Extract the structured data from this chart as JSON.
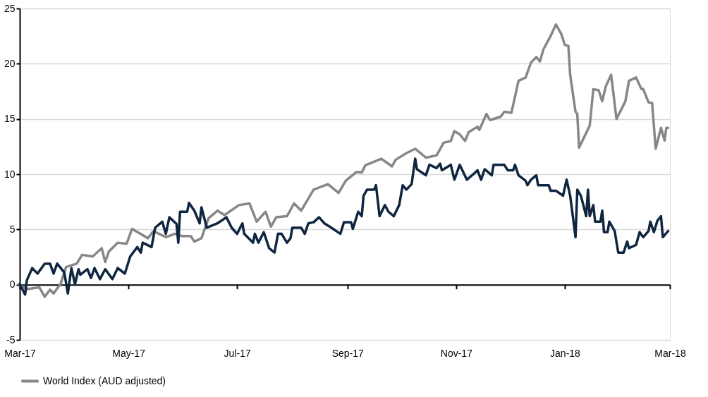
{
  "chart_data": {
    "type": "line",
    "xlim": [
      "2017-03-01",
      "2018-03-01"
    ],
    "xticks": [
      {
        "value": "2017-03-01",
        "label": "Mar-17"
      },
      {
        "value": "2017-05-01",
        "label": "May-17"
      },
      {
        "value": "2017-07-01",
        "label": "Jul-17"
      },
      {
        "value": "2017-09-01",
        "label": "Sep-17"
      },
      {
        "value": "2017-11-01",
        "label": "Nov-17"
      },
      {
        "value": "2018-01-01",
        "label": "Jan-18"
      },
      {
        "value": "2018-03-01",
        "label": "Mar-18"
      }
    ],
    "ylim": [
      -5,
      25
    ],
    "yticks": [
      -5,
      0,
      5,
      10,
      15,
      20,
      25
    ],
    "grid": "y",
    "legend": "bottom",
    "line_style": "solid",
    "marker": "none",
    "series": [
      {
        "name": "World Index (AUD adjusted)",
        "color": "#878787",
        "x": [
          "2017-03-01",
          "2017-03-05",
          "2017-03-12",
          "2017-03-15",
          "2017-03-18",
          "2017-03-20",
          "2017-03-24",
          "2017-03-27",
          "2017-04-02",
          "2017-04-05",
          "2017-04-11",
          "2017-04-16",
          "2017-04-18",
          "2017-04-20",
          "2017-04-25",
          "2017-04-30",
          "2017-05-03",
          "2017-05-12",
          "2017-05-15",
          "2017-05-22",
          "2017-05-27",
          "2017-05-31",
          "2017-06-05",
          "2017-06-07",
          "2017-06-11",
          "2017-06-15",
          "2017-06-20",
          "2017-06-24",
          "2017-07-02",
          "2017-07-08",
          "2017-07-12",
          "2017-07-17",
          "2017-07-20",
          "2017-07-23",
          "2017-07-29",
          "2017-08-02",
          "2017-08-06",
          "2017-08-13",
          "2017-08-21",
          "2017-08-27",
          "2017-08-31",
          "2017-09-06",
          "2017-09-09",
          "2017-09-11",
          "2017-09-20",
          "2017-09-26",
          "2017-09-28",
          "2017-10-04",
          "2017-10-09",
          "2017-10-15",
          "2017-10-21",
          "2017-10-25",
          "2017-10-29",
          "2017-10-31",
          "2017-11-03",
          "2017-11-06",
          "2017-11-08",
          "2017-11-13",
          "2017-11-14",
          "2017-11-18",
          "2017-11-20",
          "2017-11-26",
          "2017-11-28",
          "2017-12-02",
          "2017-12-06",
          "2017-12-10",
          "2017-12-13",
          "2017-12-16",
          "2017-12-18",
          "2017-12-20",
          "2017-12-24",
          "2017-12-27",
          "2017-12-30",
          "2018-01-01",
          "2018-01-03",
          "2018-01-04",
          "2018-01-07",
          "2018-01-08",
          "2018-01-09",
          "2018-01-15",
          "2018-01-17",
          "2018-01-20",
          "2018-01-22",
          "2018-01-24",
          "2018-01-27",
          "2018-01-30",
          "2018-02-04",
          "2018-02-06",
          "2018-02-10",
          "2018-02-13",
          "2018-02-14",
          "2018-02-17",
          "2018-02-19",
          "2018-02-21",
          "2018-02-24",
          "2018-02-26",
          "2018-02-27",
          "2018-02-28"
        ],
        "values": [
          0,
          -0.4,
          -0.25,
          -1.1,
          -0.45,
          -0.8,
          0.1,
          1.6,
          1.9,
          2.7,
          2.55,
          3.3,
          2.05,
          3.0,
          3.8,
          3.7,
          5.05,
          4.2,
          4.85,
          4.3,
          4.6,
          4.4,
          4.4,
          3.9,
          4.2,
          6.0,
          6.7,
          6.3,
          7.2,
          7.35,
          5.7,
          6.6,
          5.25,
          6.1,
          6.2,
          7.35,
          6.7,
          8.6,
          9.1,
          8.3,
          9.4,
          10.2,
          10.15,
          10.8,
          11.4,
          10.7,
          11.3,
          11.9,
          12.3,
          11.5,
          11.7,
          12.85,
          13.0,
          13.9,
          13.6,
          13.0,
          13.8,
          14.3,
          14.0,
          15.45,
          14.9,
          15.2,
          15.65,
          15.55,
          18.45,
          18.75,
          20.1,
          20.6,
          20.2,
          21.3,
          22.5,
          23.55,
          22.7,
          21.7,
          21.6,
          19.0,
          15.65,
          15.45,
          12.4,
          14.4,
          17.7,
          17.6,
          16.6,
          17.95,
          19.0,
          15.0,
          16.6,
          18.45,
          18.75,
          17.7,
          17.7,
          16.5,
          16.45,
          12.3,
          14.2,
          13.05,
          14.2,
          14.2
        ]
      },
      {
        "color": "#0f2540",
        "x": [
          "2017-03-01",
          "2017-03-04",
          "2017-03-05",
          "2017-03-08",
          "2017-03-11",
          "2017-03-15",
          "2017-03-18",
          "2017-03-20",
          "2017-03-22",
          "2017-03-26",
          "2017-03-28",
          "2017-03-30",
          "2017-04-01",
          "2017-04-03",
          "2017-04-04",
          "2017-04-08",
          "2017-04-10",
          "2017-04-12",
          "2017-04-15",
          "2017-04-18",
          "2017-04-22",
          "2017-04-25",
          "2017-04-29",
          "2017-05-02",
          "2017-05-06",
          "2017-05-08",
          "2017-05-09",
          "2017-05-14",
          "2017-05-16",
          "2017-05-20",
          "2017-05-22",
          "2017-05-24",
          "2017-05-28",
          "2017-05-29",
          "2017-05-30",
          "2017-06-03",
          "2017-06-04",
          "2017-06-07",
          "2017-06-10",
          "2017-06-11",
          "2017-06-14",
          "2017-06-20",
          "2017-06-25",
          "2017-06-28",
          "2017-07-01",
          "2017-07-04",
          "2017-07-05",
          "2017-07-10",
          "2017-07-11",
          "2017-07-13",
          "2017-07-16",
          "2017-07-19",
          "2017-07-22",
          "2017-07-24",
          "2017-07-26",
          "2017-07-29",
          "2017-07-31",
          "2017-08-01",
          "2017-08-06",
          "2017-08-08",
          "2017-08-10",
          "2017-08-13",
          "2017-08-16",
          "2017-08-19",
          "2017-08-23",
          "2017-08-28",
          "2017-08-30",
          "2017-09-03",
          "2017-09-04",
          "2017-09-07",
          "2017-09-09",
          "2017-09-10",
          "2017-09-12",
          "2017-09-16",
          "2017-09-17",
          "2017-09-19",
          "2017-09-22",
          "2017-09-24",
          "2017-09-27",
          "2017-09-30",
          "2017-10-02",
          "2017-10-04",
          "2017-10-07",
          "2017-10-09",
          "2017-10-10",
          "2017-10-15",
          "2017-10-17",
          "2017-10-21",
          "2017-10-23",
          "2017-10-24",
          "2017-10-29",
          "2017-10-31",
          "2017-11-03",
          "2017-11-07",
          "2017-11-11",
          "2017-11-13",
          "2017-11-15",
          "2017-11-17",
          "2017-11-21",
          "2017-11-22",
          "2017-11-28",
          "2017-11-30",
          "2017-12-03",
          "2017-12-04",
          "2017-12-06",
          "2017-12-10",
          "2017-12-11",
          "2017-12-13",
          "2017-12-16",
          "2017-12-17",
          "2017-12-23",
          "2017-12-24",
          "2017-12-27",
          "2017-12-31",
          "2018-01-02",
          "2018-01-04",
          "2018-01-07",
          "2018-01-08",
          "2018-01-10",
          "2018-01-13",
          "2018-01-14",
          "2018-01-15",
          "2018-01-17",
          "2018-01-18",
          "2018-01-21",
          "2018-01-22",
          "2018-01-23",
          "2018-01-25",
          "2018-01-26",
          "2018-01-29",
          "2018-01-31",
          "2018-02-03",
          "2018-02-05",
          "2018-02-06",
          "2018-02-10",
          "2018-02-12",
          "2018-02-14",
          "2018-02-17",
          "2018-02-18",
          "2018-02-20",
          "2018-02-22",
          "2018-02-24",
          "2018-02-25",
          "2018-02-28"
        ],
        "values": [
          0.05,
          -0.9,
          0.4,
          1.5,
          1.0,
          1.9,
          1.9,
          1.0,
          1.9,
          1.1,
          -0.8,
          1.5,
          0.05,
          1.4,
          0.9,
          1.4,
          0.6,
          1.5,
          0.5,
          1.4,
          0.5,
          1.5,
          1.0,
          2.55,
          3.4,
          2.9,
          3.8,
          3.4,
          5.15,
          5.7,
          4.6,
          6.1,
          5.5,
          3.8,
          6.6,
          6.6,
          7.4,
          6.7,
          5.55,
          7.0,
          5.15,
          5.55,
          6.1,
          5.15,
          4.6,
          5.55,
          4.6,
          3.8,
          4.6,
          3.8,
          4.75,
          3.3,
          2.9,
          4.6,
          4.6,
          3.8,
          4.2,
          5.15,
          5.15,
          4.6,
          5.55,
          5.65,
          6.1,
          5.55,
          5.15,
          4.6,
          5.65,
          5.65,
          5.05,
          6.6,
          6.2,
          8.05,
          8.6,
          8.6,
          9.0,
          6.2,
          7.2,
          6.6,
          6.2,
          7.2,
          9.0,
          8.6,
          9.1,
          11.4,
          10.45,
          9.9,
          10.85,
          10.55,
          10.95,
          10.35,
          10.85,
          9.5,
          10.85,
          9.5,
          10.05,
          10.35,
          9.5,
          10.45,
          9.9,
          10.85,
          10.85,
          10.35,
          10.35,
          10.85,
          9.9,
          9.4,
          9.0,
          9.5,
          9.9,
          9.0,
          9.0,
          8.5,
          8.5,
          8.05,
          9.5,
          8.05,
          4.3,
          8.6,
          8.05,
          6.2,
          8.6,
          6.2,
          7.2,
          5.7,
          5.7,
          6.7,
          4.75,
          4.75,
          5.7,
          4.85,
          2.9,
          2.9,
          3.9,
          3.3,
          3.6,
          4.75,
          4.3,
          4.85,
          5.7,
          4.75,
          5.8,
          6.2,
          4.3,
          4.85
        ]
      }
    ]
  }
}
